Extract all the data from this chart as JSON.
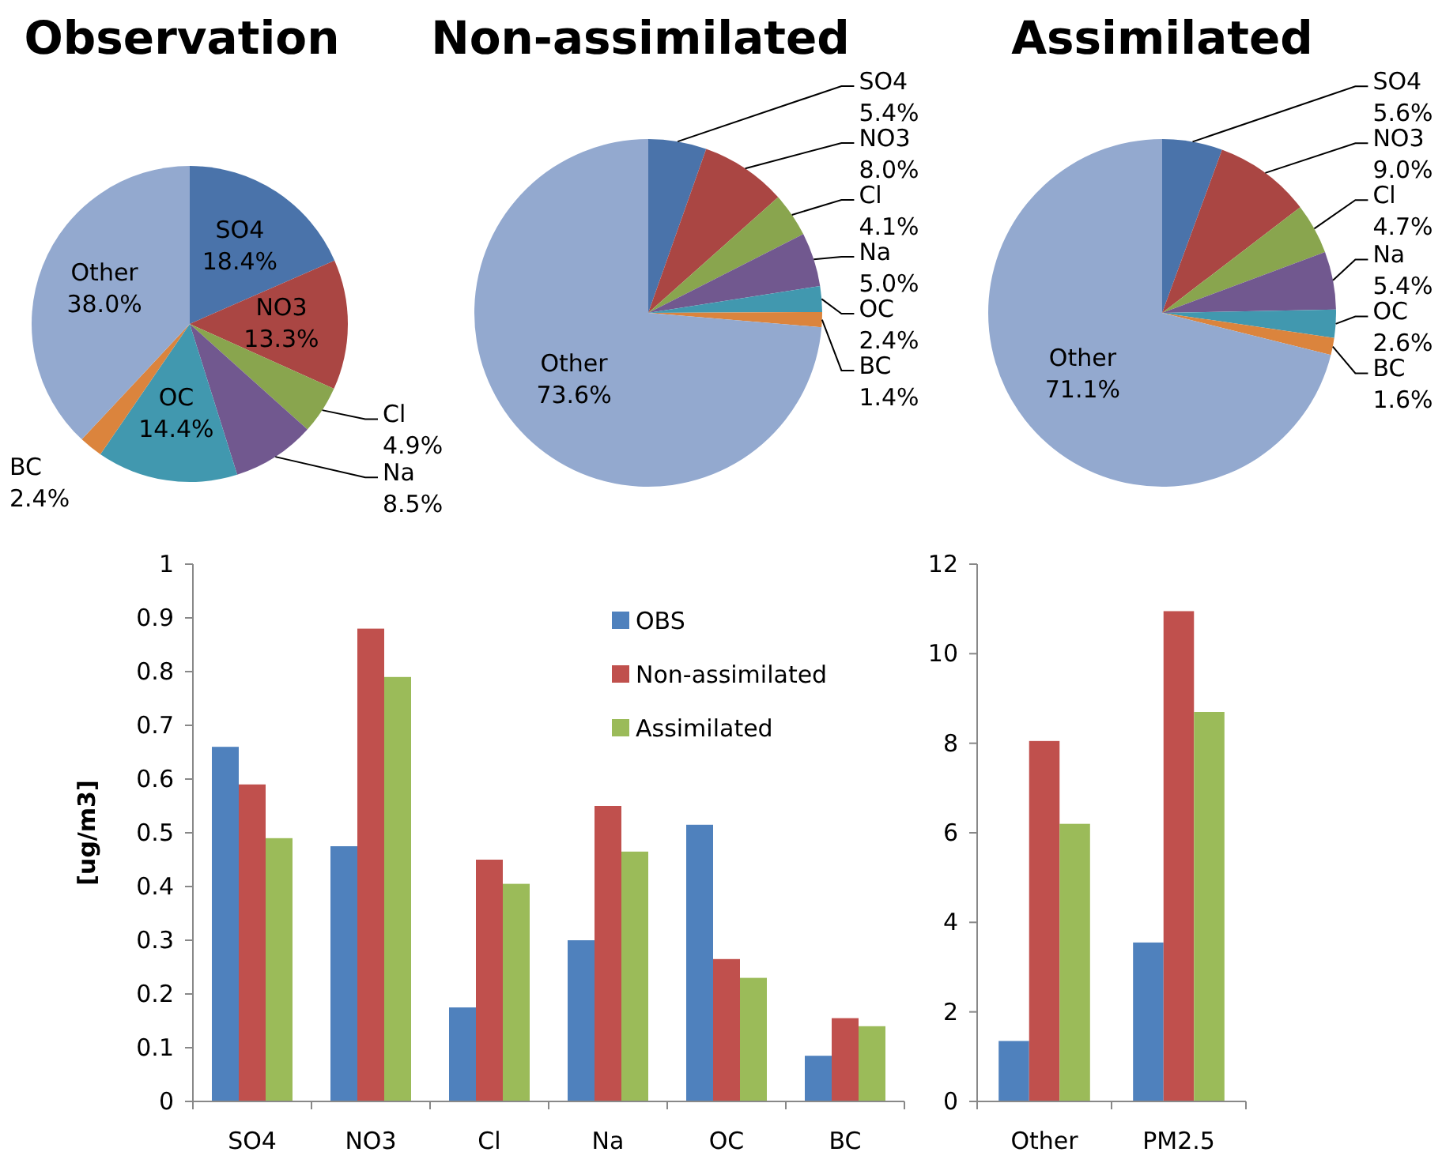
{
  "chart_data": [
    {
      "type": "pie",
      "title": "Observation",
      "categories": [
        "SO4",
        "NO3",
        "Cl",
        "Na",
        "OC",
        "BC",
        "Other"
      ],
      "values": [
        18.4,
        13.3,
        4.9,
        8.5,
        14.4,
        2.4,
        38.0
      ],
      "value_labels": [
        "18.4%",
        "13.3%",
        "4.9%",
        "8.5%",
        "14.4%",
        "2.4%",
        "38.0%"
      ],
      "colors": [
        "#4a73aa",
        "#aa4643",
        "#89a54e",
        "#71588f",
        "#4198af",
        "#db843d",
        "#93a9cf"
      ]
    },
    {
      "type": "pie",
      "title": "Non-assimilated",
      "categories": [
        "SO4",
        "NO3",
        "Cl",
        "Na",
        "OC",
        "BC",
        "Other"
      ],
      "values": [
        5.4,
        8.0,
        4.1,
        5.0,
        2.4,
        1.4,
        73.6
      ],
      "value_labels": [
        "5.4%",
        "8.0%",
        "4.1%",
        "5.0%",
        "2.4%",
        "1.4%",
        "73.6%"
      ],
      "colors": [
        "#4a73aa",
        "#aa4643",
        "#89a54e",
        "#71588f",
        "#4198af",
        "#db843d",
        "#93a9cf"
      ]
    },
    {
      "type": "pie",
      "title": "Assimilated",
      "categories": [
        "SO4",
        "NO3",
        "Cl",
        "Na",
        "OC",
        "BC",
        "Other"
      ],
      "values": [
        5.6,
        9.0,
        4.7,
        5.4,
        2.6,
        1.6,
        71.1
      ],
      "value_labels": [
        "5.6%",
        "9.0%",
        "4.7%",
        "5.4%",
        "2.6%",
        "1.6%",
        "71.1%"
      ],
      "colors": [
        "#4a73aa",
        "#aa4643",
        "#89a54e",
        "#71588f",
        "#4198af",
        "#db843d",
        "#93a9cf"
      ]
    },
    {
      "type": "bar",
      "ylabel": "[ug/m3]",
      "categories": [
        "SO4",
        "NO3",
        "Cl",
        "Na",
        "OC",
        "BC"
      ],
      "ylim": [
        0,
        1
      ],
      "yticks": [
        0,
        0.1,
        0.2,
        0.3,
        0.4,
        0.5,
        0.6,
        0.7,
        0.8,
        0.9,
        1
      ],
      "legend": "top right",
      "grid": false,
      "series": [
        {
          "name": "OBS",
          "color": "#4f81bd",
          "values": [
            0.66,
            0.475,
            0.175,
            0.3,
            0.515,
            0.085
          ]
        },
        {
          "name": "Non-assimilated",
          "color": "#c0504d",
          "values": [
            0.59,
            0.88,
            0.45,
            0.55,
            0.265,
            0.155
          ]
        },
        {
          "name": "Assimilated",
          "color": "#9bbb59",
          "values": [
            0.49,
            0.79,
            0.405,
            0.465,
            0.23,
            0.14
          ]
        }
      ]
    },
    {
      "type": "bar",
      "categories": [
        "Other",
        "PM2.5"
      ],
      "ylim": [
        0,
        12
      ],
      "yticks": [
        0,
        2,
        4,
        6,
        8,
        10,
        12
      ],
      "grid": false,
      "series": [
        {
          "color": "#4f81bd",
          "values": [
            1.35,
            3.55
          ]
        },
        {
          "color": "#c0504d",
          "values": [
            8.05,
            10.95
          ]
        },
        {
          "color": "#9bbb59",
          "values": [
            6.2,
            8.7
          ]
        }
      ]
    }
  ]
}
